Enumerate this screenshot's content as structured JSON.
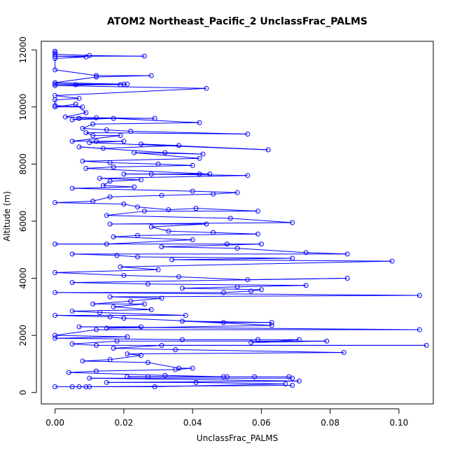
{
  "chart_data": {
    "type": "line",
    "title": "ATOM2 Northeast_Pacific_2 UnclassFrac_PALMS",
    "xlabel": "UnclassFrac_PALMS",
    "ylabel": "Altitude (m)",
    "xlim": [
      -0.004,
      0.11
    ],
    "ylim": [
      -400,
      12300
    ],
    "x_ticks": [
      0.0,
      0.02,
      0.04,
      0.06,
      0.08,
      0.1
    ],
    "x_tick_labels": [
      "0.00",
      "0.02",
      "0.04",
      "0.06",
      "0.08",
      "0.10"
    ],
    "y_ticks": [
      0,
      2000,
      4000,
      6000,
      8000,
      10000,
      12000
    ],
    "y_tick_labels": [
      "0",
      "2000",
      "4000",
      "6000",
      "8000",
      "10000",
      "12000"
    ],
    "grid": false,
    "legend": "none",
    "colors": {
      "series": "#0000ff",
      "axis": "#000000",
      "background": "#ffffff"
    },
    "series": [
      {
        "marker": "open-circle",
        "points": [
          [
            0.0,
            11950
          ],
          [
            0.0,
            11900
          ],
          [
            0.0,
            11850
          ],
          [
            0.01,
            11800
          ],
          [
            0.026,
            11780
          ],
          [
            0.0,
            11780
          ],
          [
            0.009,
            11750
          ],
          [
            0.0,
            11700
          ],
          [
            0.0,
            11300
          ],
          [
            0.012,
            11100
          ],
          [
            0.028,
            11100
          ],
          [
            0.012,
            11050
          ],
          [
            0.0,
            10850
          ],
          [
            0.02,
            10800
          ],
          [
            0.0,
            10800
          ],
          [
            0.019,
            10780
          ],
          [
            0.006,
            10780
          ],
          [
            0.021,
            10800
          ],
          [
            0.0,
            10750
          ],
          [
            0.044,
            10650
          ],
          [
            0.0,
            10400
          ],
          [
            0.007,
            10300
          ],
          [
            0.0,
            10250
          ],
          [
            0.0,
            10050
          ],
          [
            0.008,
            10000
          ],
          [
            0.0,
            10000
          ],
          [
            0.006,
            10100
          ],
          [
            0.009,
            9800
          ],
          [
            0.003,
            9650
          ],
          [
            0.012,
            9620
          ],
          [
            0.029,
            9600
          ],
          [
            0.007,
            9600
          ],
          [
            0.005,
            9550
          ],
          [
            0.017,
            9600
          ],
          [
            0.042,
            9450
          ],
          [
            0.011,
            9400
          ],
          [
            0.008,
            9250
          ],
          [
            0.015,
            9200
          ],
          [
            0.022,
            9150
          ],
          [
            0.056,
            9050
          ],
          [
            0.009,
            9100
          ],
          [
            0.011,
            9000
          ],
          [
            0.019,
            9000
          ],
          [
            0.005,
            8800
          ],
          [
            0.012,
            8800
          ],
          [
            0.02,
            8800
          ],
          [
            0.01,
            8750
          ],
          [
            0.062,
            8500
          ],
          [
            0.025,
            8700
          ],
          [
            0.036,
            8650
          ],
          [
            0.014,
            8550
          ],
          [
            0.007,
            8600
          ],
          [
            0.032,
            8400
          ],
          [
            0.043,
            8350
          ],
          [
            0.023,
            8400
          ],
          [
            0.042,
            8200
          ],
          [
            0.008,
            8100
          ],
          [
            0.016,
            8050
          ],
          [
            0.03,
            8000
          ],
          [
            0.04,
            7950
          ],
          [
            0.017,
            7900
          ],
          [
            0.009,
            7850
          ],
          [
            0.045,
            7650
          ],
          [
            0.02,
            7650
          ],
          [
            0.042,
            7650
          ],
          [
            0.028,
            7650
          ],
          [
            0.056,
            7600
          ],
          [
            0.013,
            7500
          ],
          [
            0.025,
            7450
          ],
          [
            0.016,
            7400
          ],
          [
            0.014,
            7250
          ],
          [
            0.023,
            7200
          ],
          [
            0.005,
            7150
          ],
          [
            0.04,
            7050
          ],
          [
            0.053,
            7000
          ],
          [
            0.046,
            6950
          ],
          [
            0.031,
            6900
          ],
          [
            0.016,
            6850
          ],
          [
            0.011,
            6700
          ],
          [
            0.0,
            6650
          ],
          [
            0.02,
            6600
          ],
          [
            0.024,
            6500
          ],
          [
            0.033,
            6400
          ],
          [
            0.041,
            6450
          ],
          [
            0.059,
            6350
          ],
          [
            0.026,
            6350
          ],
          [
            0.015,
            6200
          ],
          [
            0.051,
            6100
          ],
          [
            0.069,
            5950
          ],
          [
            0.016,
            5900
          ],
          [
            0.044,
            5900
          ],
          [
            0.028,
            5800
          ],
          [
            0.033,
            5650
          ],
          [
            0.046,
            5600
          ],
          [
            0.059,
            5550
          ],
          [
            0.024,
            5500
          ],
          [
            0.017,
            5450
          ],
          [
            0.04,
            5350
          ],
          [
            0.015,
            5200
          ],
          [
            0.0,
            5200
          ],
          [
            0.05,
            5200
          ],
          [
            0.06,
            5200
          ],
          [
            0.031,
            5100
          ],
          [
            0.053,
            5050
          ],
          [
            0.073,
            4900
          ],
          [
            0.085,
            4850
          ],
          [
            0.005,
            4850
          ],
          [
            0.018,
            4800
          ],
          [
            0.024,
            4750
          ],
          [
            0.069,
            4700
          ],
          [
            0.034,
            4650
          ],
          [
            0.098,
            4600
          ],
          [
            0.019,
            4400
          ],
          [
            0.03,
            4300
          ],
          [
            0.0,
            4200
          ],
          [
            0.02,
            4100
          ],
          [
            0.036,
            4050
          ],
          [
            0.056,
            3950
          ],
          [
            0.085,
            4000
          ],
          [
            0.005,
            3850
          ],
          [
            0.027,
            3800
          ],
          [
            0.073,
            3750
          ],
          [
            0.053,
            3700
          ],
          [
            0.037,
            3650
          ],
          [
            0.06,
            3600
          ],
          [
            0.057,
            3550
          ],
          [
            0.049,
            3500
          ],
          [
            0.0,
            3500
          ],
          [
            0.106,
            3400
          ],
          [
            0.016,
            3350
          ],
          [
            0.031,
            3300
          ],
          [
            0.022,
            3200
          ],
          [
            0.011,
            3100
          ],
          [
            0.026,
            3100
          ],
          [
            0.017,
            3000
          ],
          [
            0.028,
            2900
          ],
          [
            0.005,
            2850
          ],
          [
            0.013,
            2800
          ],
          [
            0.038,
            2700
          ],
          [
            0.0,
            2700
          ],
          [
            0.016,
            2650
          ],
          [
            0.02,
            2600
          ],
          [
            0.049,
            2450
          ],
          [
            0.063,
            2450
          ],
          [
            0.037,
            2500
          ],
          [
            0.063,
            2350
          ],
          [
            0.015,
            2250
          ],
          [
            0.025,
            2300
          ],
          [
            0.007,
            2300
          ],
          [
            0.106,
            2200
          ],
          [
            0.012,
            2200
          ],
          [
            0.0,
            2000
          ],
          [
            0.021,
            1950
          ],
          [
            0.0,
            1900
          ],
          [
            0.037,
            1850
          ],
          [
            0.059,
            1850
          ],
          [
            0.071,
            1850
          ],
          [
            0.057,
            1750
          ],
          [
            0.079,
            1800
          ],
          [
            0.018,
            1800
          ],
          [
            0.005,
            1700
          ],
          [
            0.012,
            1650
          ],
          [
            0.108,
            1650
          ],
          [
            0.031,
            1650
          ],
          [
            0.017,
            1550
          ],
          [
            0.035,
            1500
          ],
          [
            0.084,
            1400
          ],
          [
            0.021,
            1350
          ],
          [
            0.025,
            1300
          ],
          [
            0.016,
            1150
          ],
          [
            0.008,
            1100
          ],
          [
            0.027,
            1050
          ],
          [
            0.036,
            850
          ],
          [
            0.04,
            850
          ],
          [
            0.035,
            800
          ],
          [
            0.012,
            750
          ],
          [
            0.004,
            700
          ],
          [
            0.032,
            600
          ],
          [
            0.049,
            550
          ],
          [
            0.021,
            550
          ],
          [
            0.027,
            550
          ],
          [
            0.05,
            550
          ],
          [
            0.058,
            550
          ],
          [
            0.068,
            550
          ],
          [
            0.069,
            500
          ],
          [
            0.01,
            500
          ],
          [
            0.071,
            400
          ],
          [
            0.015,
            350
          ],
          [
            0.041,
            350
          ],
          [
            0.067,
            300
          ],
          [
            0.029,
            200
          ],
          [
            0.007,
            200
          ],
          [
            0.01,
            200
          ],
          [
            0.0,
            200
          ],
          [
            0.005,
            200
          ],
          [
            0.009,
            200
          ],
          [
            0.069,
            250
          ]
        ]
      }
    ]
  }
}
